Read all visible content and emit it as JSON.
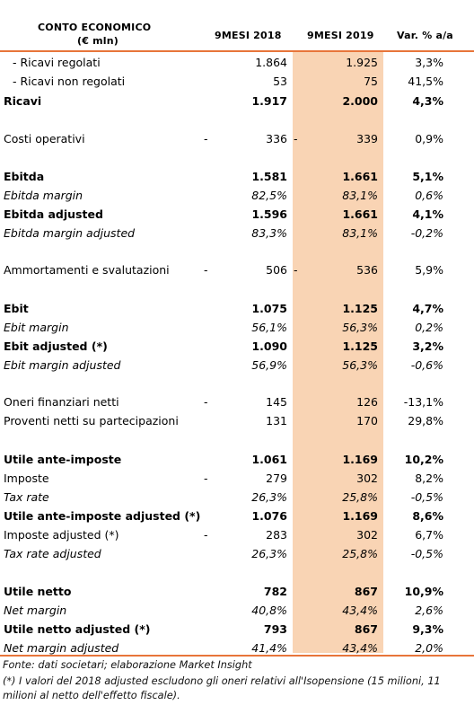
{
  "header": {
    "col_label_1": "CONTO ECONOMICO",
    "col_label_2": "(€ mln)",
    "col_2018": "9MESI 2018",
    "col_2019": "9MESI 2019",
    "col_var": "Var. % a/a"
  },
  "rows": [
    {
      "label": "- Ricavi regolati",
      "y2018": "1.864",
      "y2019": "1.925",
      "var": "3,3%"
    },
    {
      "label": "- Ricavi non regolati",
      "y2018": "53",
      "y2019": "75",
      "var": "41,5%"
    },
    {
      "label": "Ricavi",
      "y2018": "1.917",
      "y2019": "2.000",
      "var": "4,3%"
    },
    {
      "label": "Costi operativi",
      "y2018": "336",
      "y2019": "339",
      "var": "0,9%"
    },
    {
      "label": "Ebitda",
      "y2018": "1.581",
      "y2019": "1.661",
      "var": "5,1%"
    },
    {
      "label": "Ebitda margin",
      "y2018": "82,5%",
      "y2019": "83,1%",
      "var": "0,6%"
    },
    {
      "label": "Ebitda adjusted",
      "y2018": "1.596",
      "y2019": "1.661",
      "var": "4,1%"
    },
    {
      "label": "Ebitda margin adjusted",
      "y2018": "83,3%",
      "y2019": "83,1%",
      "var": "-0,2%"
    },
    {
      "label": "Ammortamenti e svalutazioni",
      "y2018": "506",
      "y2019": "536",
      "var": "5,9%"
    },
    {
      "label": "Ebit",
      "y2018": "1.075",
      "y2019": "1.125",
      "var": "4,7%"
    },
    {
      "label": "Ebit margin",
      "y2018": "56,1%",
      "y2019": "56,3%",
      "var": "0,2%"
    },
    {
      "label": "Ebit adjusted (*)",
      "y2018": "1.090",
      "y2019": "1.125",
      "var": "3,2%"
    },
    {
      "label": "Ebit margin adjusted",
      "y2018": "56,9%",
      "y2019": "56,3%",
      "var": "-0,6%"
    },
    {
      "label": "Oneri finanziari netti",
      "y2018": "145",
      "y2019": "126",
      "var": "-13,1%"
    },
    {
      "label": "Proventi netti su partecipazioni",
      "y2018": "131",
      "y2019": "170",
      "var": "29,8%"
    },
    {
      "label": "Utile ante-imposte",
      "y2018": "1.061",
      "y2019": "1.169",
      "var": "10,2%"
    },
    {
      "label": "Imposte",
      "y2018": "279",
      "y2019": "302",
      "var": "8,2%"
    },
    {
      "label": "Tax rate",
      "y2018": "26,3%",
      "y2019": "25,8%",
      "var": "-0,5%"
    },
    {
      "label": "Utile ante-imposte adjusted (*)",
      "y2018": "1.076",
      "y2019": "1.169",
      "var": "8,6%"
    },
    {
      "label": "Imposte adjusted (*)",
      "y2018": "283",
      "y2019": "302",
      "var": "6,7%"
    },
    {
      "label": "Tax rate adjusted",
      "y2018": "26,3%",
      "y2019": "25,8%",
      "var": "-0,5%"
    },
    {
      "label": "Utile netto",
      "y2018": "782",
      "y2019": "867",
      "var": "10,9%"
    },
    {
      "label": "Net margin",
      "y2018": "40,8%",
      "y2019": "43,4%",
      "var": "2,6%"
    },
    {
      "label": "Utile netto adjusted (*)",
      "y2018": "793",
      "y2019": "867",
      "var": "9,3%"
    },
    {
      "label": "Net margin adjusted",
      "y2018": "41,4%",
      "y2019": "43,4%",
      "var": "2,0%"
    }
  ],
  "dash": "-",
  "footnotes": {
    "source": "Fonte: dati societari; elaborazione Market Insight",
    "note": "(*) I valori del 2018 adjusted escludono gli oneri relativi all'Isopensione (15 milioni, 11 milioni al netto dell'effetto fiscale)."
  },
  "colors": {
    "highlight": "#f9d4b4",
    "rule": "#e8753a"
  }
}
